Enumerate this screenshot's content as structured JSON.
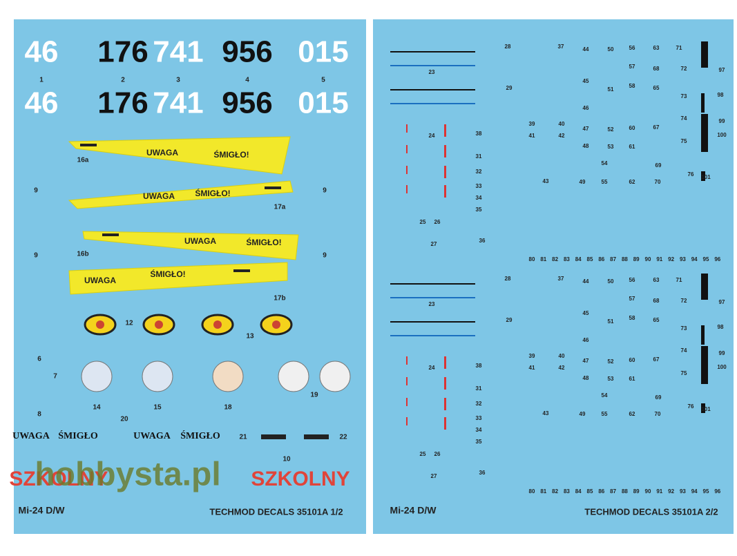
{
  "left_sheet": {
    "serials": [
      "46",
      "176",
      "741",
      "956",
      "015"
    ],
    "serial_numbers": [
      "1",
      "2",
      "3",
      "4",
      "5"
    ],
    "warning_words": [
      "UWAGA",
      "ŚMIGŁO!"
    ],
    "labels": [
      "16a",
      "17a",
      "16b",
      "17b",
      "9",
      "12",
      "13",
      "6",
      "7",
      "8",
      "14",
      "15",
      "18",
      "19",
      "20",
      "21",
      "22",
      "10"
    ],
    "stencils": [
      "UWAGA",
      "ŚMIGŁO"
    ],
    "trainer": "SZKOLNY",
    "model": "Mi-24 D/W",
    "code": "TECHMOD DECALS 35101A 1/2"
  },
  "right_sheet": {
    "labels": [
      "28",
      "37",
      "44",
      "50",
      "56",
      "63",
      "71",
      "23",
      "57",
      "68",
      "72",
      "97",
      "29",
      "45",
      "51",
      "58",
      "65",
      "73",
      "98",
      "46",
      "39",
      "40",
      "41",
      "42",
      "47",
      "52",
      "60",
      "67",
      "74",
      "99",
      "24",
      "38",
      "100",
      "48",
      "53",
      "61",
      "75",
      "31",
      "32",
      "33",
      "34",
      "35",
      "54",
      "69",
      "43",
      "49",
      "55",
      "62",
      "70",
      "76",
      "101",
      "25",
      "26",
      "27",
      "36"
    ],
    "bottom_row": [
      "80",
      "81",
      "82",
      "83",
      "84",
      "85",
      "86",
      "87",
      "88",
      "89",
      "90",
      "91",
      "92",
      "93",
      "94",
      "95",
      "96"
    ],
    "model": "Mi-24 D/W",
    "code": "TECHMOD DECALS 35101A 2/2"
  },
  "watermark": "hobbysta.pl"
}
